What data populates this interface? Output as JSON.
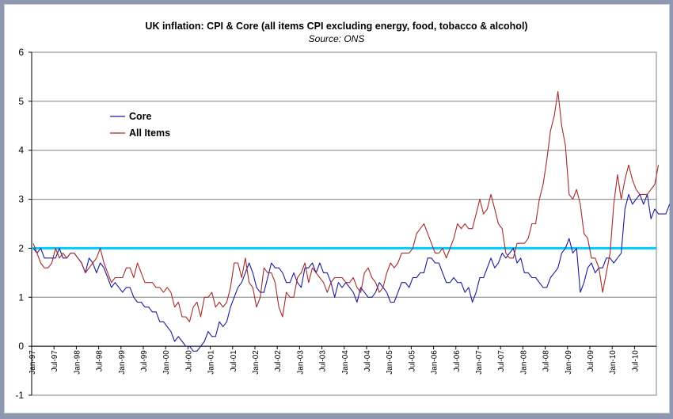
{
  "chart_data": {
    "type": "line",
    "title": "UK inflation: CPI & Core (all items CPI excluding energy, food, tobacco & alcohol)",
    "subtitle": "Source: ONS",
    "xlabel": "",
    "ylabel": "",
    "ylim": [
      -1,
      6
    ],
    "yticks": [
      "-1",
      "0",
      "1",
      "2",
      "3",
      "4",
      "5",
      "6"
    ],
    "x_start": "Jan-97",
    "x_end": "Dec-10",
    "xtick_labels": [
      "Jan-97",
      "Jul-97",
      "Jan-98",
      "Jul-98",
      "Jan-99",
      "Jul-99",
      "Jan-00",
      "Jul-00",
      "Jan-01",
      "Jul-01",
      "Jan-02",
      "Jul-02",
      "Jan-03",
      "Jul-03",
      "Jan-04",
      "Jul-04",
      "Jan-05",
      "Jul-05",
      "Jan-06",
      "Jul-06",
      "Jan-07",
      "Jul-07",
      "Jan-08",
      "Jul-08",
      "Jan-09",
      "Jul-09",
      "Jan-10",
      "Jul-10"
    ],
    "grid": "horizontal",
    "legend_position": "upper-left",
    "reference_line": {
      "value": 2,
      "color": "#00ccff"
    },
    "series": [
      {
        "name": "Core",
        "color": "#1a1a9c",
        "values": [
          2.0,
          1.9,
          2.0,
          1.8,
          1.8,
          1.8,
          1.8,
          2.0,
          1.8,
          1.8,
          1.9,
          1.9,
          1.8,
          1.7,
          1.5,
          1.8,
          1.7,
          1.5,
          1.7,
          1.6,
          1.4,
          1.2,
          1.3,
          1.2,
          1.1,
          1.2,
          1.2,
          1.0,
          0.9,
          0.9,
          0.8,
          0.8,
          0.7,
          0.7,
          0.5,
          0.5,
          0.4,
          0.3,
          0.1,
          0.2,
          0.1,
          0.0,
          0.0,
          -0.1,
          -0.1,
          0.0,
          0.1,
          0.3,
          0.2,
          0.2,
          0.5,
          0.4,
          0.5,
          0.8,
          1.0,
          1.2,
          1.3,
          1.5,
          1.7,
          1.5,
          1.2,
          1.1,
          1.1,
          1.4,
          1.7,
          1.6,
          1.6,
          1.5,
          1.3,
          1.3,
          1.5,
          1.3,
          1.2,
          1.6,
          1.6,
          1.7,
          1.5,
          1.7,
          1.5,
          1.5,
          1.3,
          1.0,
          1.3,
          1.2,
          1.3,
          1.2,
          1.1,
          0.9,
          1.2,
          1.1,
          1.0,
          1.0,
          1.1,
          1.3,
          1.2,
          1.1,
          0.9,
          0.9,
          1.1,
          1.3,
          1.3,
          1.2,
          1.4,
          1.4,
          1.5,
          1.5,
          1.8,
          1.8,
          1.7,
          1.7,
          1.5,
          1.3,
          1.3,
          1.4,
          1.3,
          1.3,
          1.1,
          1.2,
          0.9,
          1.1,
          1.4,
          1.4,
          1.6,
          1.8,
          1.6,
          1.7,
          1.9,
          1.8,
          1.9,
          2.0,
          1.7,
          1.8,
          1.5,
          1.5,
          1.4,
          1.4,
          1.3,
          1.2,
          1.2,
          1.4,
          1.5,
          1.6,
          1.9,
          2.0,
          2.2,
          1.9,
          2.0,
          1.1,
          1.3,
          1.6,
          1.7,
          1.5,
          1.6,
          1.6,
          1.8,
          1.8,
          1.7,
          1.8,
          1.9,
          2.8,
          3.1,
          2.9,
          3.0,
          3.1,
          2.9,
          3.1,
          2.6,
          2.8,
          2.7,
          2.7,
          2.7,
          2.9
        ]
      },
      {
        "name": "All Items",
        "color": "#a52a2a",
        "values": [
          2.1,
          1.9,
          1.7,
          1.6,
          1.6,
          1.7,
          2.0,
          1.8,
          1.9,
          1.8,
          1.9,
          1.9,
          1.8,
          1.7,
          1.5,
          1.6,
          1.7,
          1.8,
          2.0,
          1.7,
          1.5,
          1.3,
          1.4,
          1.4,
          1.4,
          1.6,
          1.6,
          1.4,
          1.7,
          1.5,
          1.3,
          1.3,
          1.3,
          1.2,
          1.2,
          1.1,
          1.2,
          1.1,
          0.8,
          0.9,
          0.6,
          0.6,
          0.5,
          0.8,
          0.9,
          0.6,
          1.0,
          1.0,
          1.1,
          0.8,
          0.9,
          0.8,
          0.9,
          1.2,
          1.7,
          1.7,
          1.4,
          1.8,
          1.3,
          1.2,
          0.8,
          1.0,
          1.6,
          1.5,
          1.5,
          1.3,
          0.8,
          0.6,
          1.1,
          1.0,
          1.0,
          1.4,
          1.5,
          1.7,
          1.3,
          1.6,
          1.5,
          1.4,
          1.3,
          1.1,
          1.3,
          1.4,
          1.4,
          1.4,
          1.3,
          1.3,
          1.4,
          1.2,
          1.1,
          1.5,
          1.6,
          1.4,
          1.3,
          1.1,
          1.2,
          1.5,
          1.7,
          1.6,
          1.7,
          1.9,
          1.9,
          1.9,
          2.0,
          2.3,
          2.4,
          2.5,
          2.3,
          2.1,
          1.9,
          1.9,
          2.0,
          1.8,
          2.0,
          2.2,
          2.5,
          2.4,
          2.5,
          2.4,
          2.4,
          2.7,
          3.0,
          2.7,
          2.8,
          3.1,
          2.8,
          2.5,
          2.4,
          1.9,
          1.8,
          1.8,
          2.1,
          2.1,
          2.1,
          2.2,
          2.5,
          2.5,
          3.0,
          3.3,
          3.8,
          4.4,
          4.7,
          5.2,
          4.5,
          4.1,
          3.1,
          3.0,
          3.2,
          2.9,
          2.3,
          2.2,
          1.8,
          1.8,
          1.6,
          1.1,
          1.5,
          1.9,
          2.9,
          3.5,
          3.0,
          3.4,
          3.7,
          3.4,
          3.2,
          3.1,
          3.1,
          3.1,
          3.2,
          3.3,
          3.7
        ]
      }
    ]
  }
}
